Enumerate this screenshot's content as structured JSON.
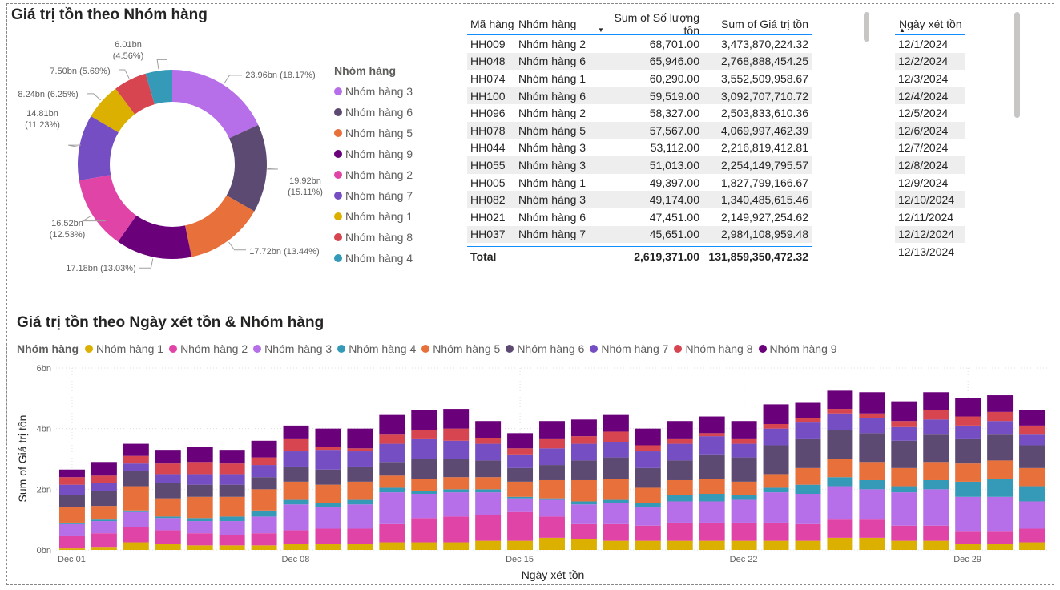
{
  "donut": {
    "title": "Giá trị tồn theo Nhóm hàng",
    "legend_title": "Nhóm hàng"
  },
  "table": {
    "headers": [
      "Mã hàng",
      "Nhóm hàng",
      "Sum of Số lượng tồn",
      "Sum of Giá trị tồn"
    ],
    "rows": [
      [
        "HH009",
        "Nhóm hàng 2",
        "68,701.00",
        "3,473,870,224.32"
      ],
      [
        "HH048",
        "Nhóm hàng 6",
        "65,946.00",
        "2,768,888,454.25"
      ],
      [
        "HH074",
        "Nhóm hàng 1",
        "60,290.00",
        "3,552,509,958.67"
      ],
      [
        "HH100",
        "Nhóm hàng 6",
        "59,519.00",
        "3,092,707,710.72"
      ],
      [
        "HH096",
        "Nhóm hàng 2",
        "58,327.00",
        "2,503,833,610.36"
      ],
      [
        "HH078",
        "Nhóm hàng 5",
        "57,567.00",
        "4,069,997,462.39"
      ],
      [
        "HH044",
        "Nhóm hàng 3",
        "53,112.00",
        "2,216,819,412.81"
      ],
      [
        "HH055",
        "Nhóm hàng 3",
        "51,013.00",
        "2,254,149,795.57"
      ],
      [
        "HH005",
        "Nhóm hàng 1",
        "49,397.00",
        "1,827,799,166.67"
      ],
      [
        "HH082",
        "Nhóm hàng 3",
        "49,174.00",
        "1,340,485,615.46"
      ],
      [
        "HH021",
        "Nhóm hàng 6",
        "47,451.00",
        "2,149,927,254.62"
      ],
      [
        "HH037",
        "Nhóm hàng 7",
        "45,651.00",
        "2,984,108,959.48"
      ]
    ],
    "total": [
      "Total",
      "",
      "2,619,371.00",
      "131,859,350,472.32"
    ]
  },
  "date_table": {
    "header": "Ngày xét tồn",
    "rows": [
      "12/1/2024",
      "12/2/2024",
      "12/3/2024",
      "12/4/2024",
      "12/5/2024",
      "12/6/2024",
      "12/7/2024",
      "12/8/2024",
      "12/9/2024",
      "12/10/2024",
      "12/11/2024",
      "12/12/2024",
      "12/13/2024"
    ]
  },
  "bar": {
    "title": "Giá trị tồn theo Ngày xét tồn & Nhóm hàng",
    "legend_title": "Nhóm hàng"
  },
  "chart_data": [
    {
      "type": "pie",
      "title": "Giá trị tồn theo Nhóm hàng",
      "legend_title": "Nhóm hàng",
      "categories": [
        "Nhóm hàng 3",
        "Nhóm hàng 6",
        "Nhóm hàng 5",
        "Nhóm hàng 9",
        "Nhóm hàng 2",
        "Nhóm hàng 7",
        "Nhóm hàng 1",
        "Nhóm hàng 8",
        "Nhóm hàng 4"
      ],
      "values": [
        23.96,
        19.92,
        17.72,
        17.18,
        16.52,
        14.81,
        8.24,
        7.5,
        6.01
      ],
      "labels": [
        "23.96bn (18.17%)",
        "19.92bn (15.11%)",
        "17.72bn (13.44%)",
        "17.18bn (13.03%)",
        "16.52bn (12.53%)",
        "14.81bn (11.23%)",
        "8.24bn (6.25%)",
        "7.50bn (5.69%)",
        "6.01bn (4.56%)"
      ],
      "colors": [
        "#b66fe8",
        "#5c4a72",
        "#e8703a",
        "#6b007b",
        "#e044a7",
        "#744ec2",
        "#dbb000",
        "#d64550",
        "#3599b8"
      ]
    },
    {
      "type": "bar",
      "stacked": true,
      "title": "Giá trị tồn theo Ngày xét tồn & Nhóm hàng",
      "xlabel": "Ngày xét tồn",
      "ylabel": "Sum of Giá trị tồn",
      "ylim": [
        0,
        6
      ],
      "yticks": [
        "0bn",
        "2bn",
        "4bn",
        "6bn"
      ],
      "xticks": [
        {
          "day": 1,
          "label": "Dec 01"
        },
        {
          "day": 8,
          "label": "Dec 08"
        },
        {
          "day": 15,
          "label": "Dec 15"
        },
        {
          "day": 22,
          "label": "Dec 22"
        },
        {
          "day": 29,
          "label": "Dec 29"
        }
      ],
      "x": [
        1,
        2,
        3,
        4,
        5,
        6,
        7,
        8,
        9,
        10,
        11,
        12,
        13,
        14,
        15,
        16,
        17,
        18,
        19,
        20,
        21,
        22,
        23,
        24,
        25,
        26,
        27,
        28,
        29,
        30,
        31
      ],
      "series": [
        {
          "name": "Nhóm hàng 1",
          "color": "#dbb000",
          "values": [
            0.05,
            0.1,
            0.25,
            0.2,
            0.15,
            0.15,
            0.15,
            0.2,
            0.2,
            0.2,
            0.25,
            0.25,
            0.25,
            0.3,
            0.3,
            0.4,
            0.35,
            0.3,
            0.3,
            0.3,
            0.3,
            0.3,
            0.3,
            0.3,
            0.4,
            0.4,
            0.3,
            0.3,
            0.2,
            0.2,
            0.25
          ]
        },
        {
          "name": "Nhóm hàng 2",
          "color": "#e044a7",
          "values": [
            0.4,
            0.45,
            0.5,
            0.45,
            0.4,
            0.35,
            0.4,
            0.45,
            0.5,
            0.5,
            0.6,
            0.8,
            0.85,
            0.85,
            0.95,
            0.7,
            0.5,
            0.55,
            0.5,
            0.6,
            0.6,
            0.6,
            0.6,
            0.55,
            0.6,
            0.6,
            0.5,
            0.5,
            0.4,
            0.4,
            0.45
          ]
        },
        {
          "name": "Nhóm hàng 3",
          "color": "#b66fe8",
          "values": [
            0.4,
            0.4,
            0.5,
            0.4,
            0.4,
            0.45,
            0.55,
            0.85,
            0.7,
            0.8,
            1.05,
            0.8,
            0.8,
            0.75,
            0.45,
            0.55,
            0.65,
            0.7,
            0.6,
            0.7,
            0.7,
            0.75,
            1.0,
            1.0,
            1.1,
            1.0,
            1.1,
            1.2,
            1.15,
            1.15,
            0.9
          ]
        },
        {
          "name": "Nhóm hàng 4",
          "color": "#3599b8",
          "values": [
            0.05,
            0.05,
            0.05,
            0.05,
            0.1,
            0.15,
            0.2,
            0.15,
            0.15,
            0.15,
            0.15,
            0.1,
            0.1,
            0.1,
            0.05,
            0.05,
            0.1,
            0.1,
            0.15,
            0.2,
            0.25,
            0.15,
            0.15,
            0.3,
            0.3,
            0.3,
            0.2,
            0.3,
            0.5,
            0.6,
            0.5
          ]
        },
        {
          "name": "Nhóm hàng 5",
          "color": "#e8703a",
          "values": [
            0.5,
            0.45,
            0.8,
            0.6,
            0.7,
            0.65,
            0.7,
            0.6,
            0.6,
            0.6,
            0.4,
            0.4,
            0.4,
            0.4,
            0.5,
            0.6,
            0.7,
            0.7,
            0.5,
            0.5,
            0.5,
            0.45,
            0.45,
            0.55,
            0.6,
            0.6,
            0.6,
            0.6,
            0.6,
            0.6,
            0.6
          ]
        },
        {
          "name": "Nhóm hàng 6",
          "color": "#5c4a72",
          "values": [
            0.4,
            0.5,
            0.5,
            0.5,
            0.4,
            0.4,
            0.4,
            0.5,
            0.5,
            0.5,
            0.45,
            0.65,
            0.6,
            0.55,
            0.45,
            0.5,
            0.65,
            0.7,
            0.65,
            0.65,
            0.8,
            0.8,
            0.95,
            0.95,
            0.95,
            0.95,
            0.9,
            0.9,
            0.8,
            0.85,
            0.75
          ]
        },
        {
          "name": "Nhóm hàng 7",
          "color": "#744ec2",
          "values": [
            0.35,
            0.25,
            0.25,
            0.3,
            0.35,
            0.35,
            0.4,
            0.5,
            0.65,
            0.5,
            0.6,
            0.65,
            0.6,
            0.55,
            0.45,
            0.55,
            0.55,
            0.5,
            0.55,
            0.55,
            0.6,
            0.45,
            0.55,
            0.55,
            0.55,
            0.5,
            0.45,
            0.5,
            0.45,
            0.45,
            0.35
          ]
        },
        {
          "name": "Nhóm hàng 8",
          "color": "#d64550",
          "values": [
            0.25,
            0.25,
            0.25,
            0.35,
            0.4,
            0.35,
            0.25,
            0.4,
            0.1,
            0.1,
            0.3,
            0.3,
            0.4,
            0.2,
            0.2,
            0.3,
            0.25,
            0.35,
            0.2,
            0.15,
            0.1,
            0.15,
            0.15,
            0.15,
            0.15,
            0.15,
            0.2,
            0.3,
            0.3,
            0.3,
            0.3
          ]
        },
        {
          "name": "Nhóm hàng 9",
          "color": "#6b007b",
          "values": [
            0.25,
            0.45,
            0.4,
            0.45,
            0.5,
            0.45,
            0.55,
            0.45,
            0.6,
            0.65,
            0.65,
            0.65,
            0.65,
            0.55,
            0.5,
            0.6,
            0.55,
            0.55,
            0.55,
            0.6,
            0.55,
            0.6,
            0.65,
            0.5,
            0.6,
            0.7,
            0.65,
            0.6,
            0.6,
            0.55,
            0.5
          ]
        }
      ]
    }
  ]
}
